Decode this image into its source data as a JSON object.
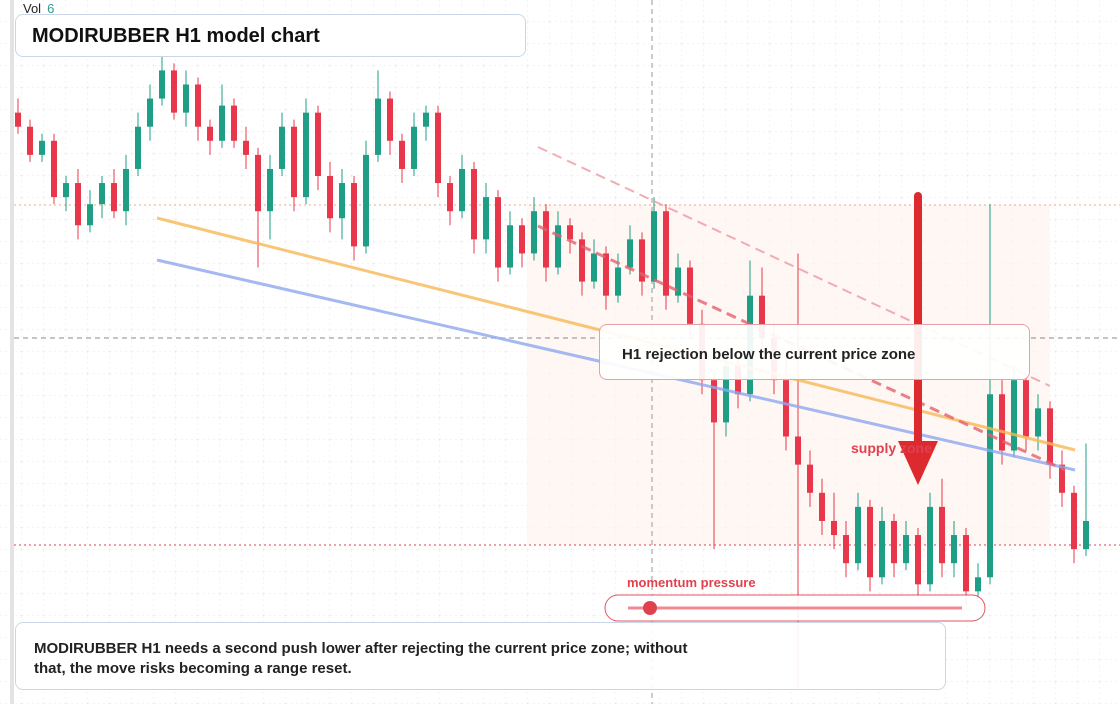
{
  "legend": {
    "vol_label": "Vol",
    "vol_value": 6
  },
  "chart_data": {
    "type": "candlestick",
    "title": "MODIRUBBER H1 model chart",
    "subtitle": "MODIRUBBER H1 needs a second push lower after rejecting the current price zone; without that, the move risks becoming a range reset.",
    "annotations": [
      "H1 rejection below the current price zone",
      "supply zone",
      "momentum pressure"
    ],
    "up_color": "#1f9e86",
    "down_color": "#e8374a",
    "ylim": [
      0,
      100
    ],
    "candles": [
      [
        84,
        86,
        81,
        82
      ],
      [
        82,
        83,
        77,
        78
      ],
      [
        78,
        81,
        77,
        80
      ],
      [
        80,
        81,
        71,
        72
      ],
      [
        72,
        75,
        70,
        74
      ],
      [
        74,
        76,
        66,
        68
      ],
      [
        68,
        73,
        67,
        71
      ],
      [
        71,
        75,
        69,
        74
      ],
      [
        74,
        76,
        69,
        70
      ],
      [
        70,
        78,
        68,
        76
      ],
      [
        76,
        84,
        75,
        82
      ],
      [
        82,
        88,
        80,
        86
      ],
      [
        86,
        92,
        85,
        90
      ],
      [
        90,
        91,
        83,
        84
      ],
      [
        84,
        90,
        82,
        88
      ],
      [
        88,
        89,
        80,
        82
      ],
      [
        82,
        83,
        78,
        80
      ],
      [
        80,
        88,
        79,
        85
      ],
      [
        85,
        86,
        79,
        80
      ],
      [
        80,
        82,
        76,
        78
      ],
      [
        78,
        79,
        62,
        70
      ],
      [
        70,
        78,
        66,
        76
      ],
      [
        76,
        84,
        75,
        82
      ],
      [
        82,
        83,
        70,
        72
      ],
      [
        72,
        86,
        71,
        84
      ],
      [
        84,
        85,
        73,
        75
      ],
      [
        75,
        77,
        67,
        69
      ],
      [
        69,
        76,
        66,
        74
      ],
      [
        74,
        75,
        63,
        65
      ],
      [
        65,
        80,
        64,
        78
      ],
      [
        78,
        90,
        77,
        86
      ],
      [
        86,
        87,
        78,
        80
      ],
      [
        80,
        81,
        74,
        76
      ],
      [
        76,
        84,
        75,
        82
      ],
      [
        82,
        85,
        80,
        84
      ],
      [
        84,
        85,
        72,
        74
      ],
      [
        74,
        75,
        68,
        70
      ],
      [
        70,
        78,
        69,
        76
      ],
      [
        76,
        77,
        64,
        66
      ],
      [
        66,
        74,
        64,
        72
      ],
      [
        72,
        73,
        60,
        62
      ],
      [
        62,
        70,
        61,
        68
      ],
      [
        68,
        69,
        62,
        64
      ],
      [
        64,
        72,
        63,
        70
      ],
      [
        70,
        71,
        60,
        62
      ],
      [
        62,
        70,
        61,
        68
      ],
      [
        68,
        69,
        64,
        66
      ],
      [
        66,
        67,
        58,
        60
      ],
      [
        60,
        66,
        59,
        64
      ],
      [
        64,
        65,
        56,
        58
      ],
      [
        58,
        64,
        57,
        62
      ],
      [
        62,
        68,
        61,
        66
      ],
      [
        66,
        67,
        58,
        60
      ],
      [
        60,
        72,
        59,
        70
      ],
      [
        70,
        71,
        56,
        58
      ],
      [
        58,
        64,
        57,
        62
      ],
      [
        62,
        63,
        52,
        54
      ],
      [
        54,
        56,
        44,
        46
      ],
      [
        46,
        47,
        22,
        40
      ],
      [
        40,
        50,
        38,
        48
      ],
      [
        48,
        49,
        42,
        44
      ],
      [
        44,
        63,
        43,
        58
      ],
      [
        58,
        62,
        50,
        52
      ],
      [
        52,
        54,
        44,
        46
      ],
      [
        46,
        50,
        36,
        38
      ],
      [
        38,
        64,
        2,
        34
      ],
      [
        34,
        36,
        28,
        30
      ],
      [
        30,
        32,
        24,
        26
      ],
      [
        26,
        30,
        22,
        24
      ],
      [
        24,
        26,
        18,
        20
      ],
      [
        20,
        30,
        19,
        28
      ],
      [
        28,
        29,
        16,
        18
      ],
      [
        18,
        28,
        17,
        26
      ],
      [
        26,
        27,
        18,
        20
      ],
      [
        20,
        26,
        19,
        24
      ],
      [
        24,
        25,
        15,
        17
      ],
      [
        17,
        30,
        16,
        28
      ],
      [
        28,
        32,
        18,
        20
      ],
      [
        20,
        26,
        18,
        24
      ],
      [
        24,
        25,
        14,
        16
      ],
      [
        16,
        20,
        15,
        18
      ],
      [
        18,
        71,
        17,
        44
      ],
      [
        44,
        46,
        34,
        36
      ],
      [
        36,
        48,
        35,
        46
      ],
      [
        46,
        47,
        36,
        38
      ],
      [
        38,
        44,
        36,
        42
      ],
      [
        42,
        43,
        32,
        34
      ],
      [
        34,
        36,
        28,
        30
      ],
      [
        30,
        31,
        20,
        22
      ],
      [
        22,
        37,
        21,
        26
      ]
    ]
  }
}
